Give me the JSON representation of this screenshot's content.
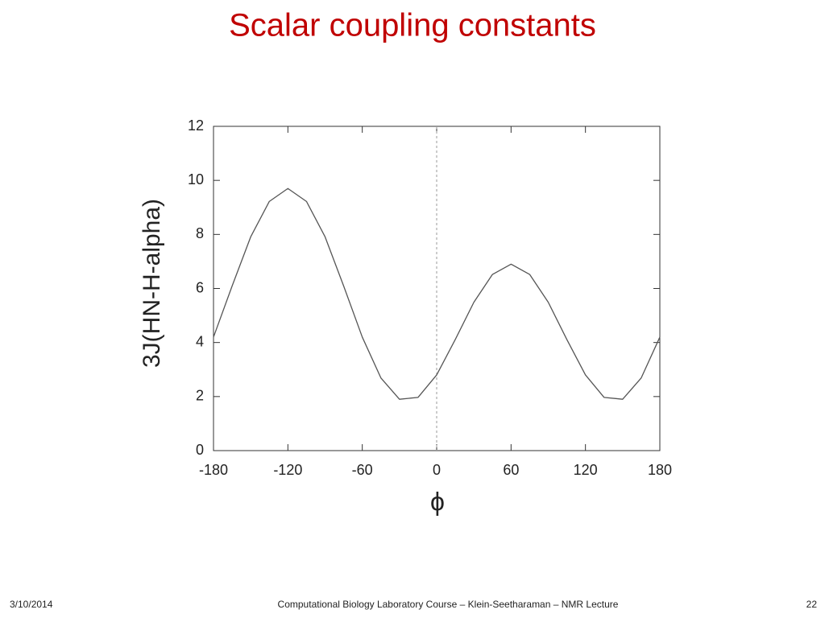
{
  "slide": {
    "title": "Scalar coupling constants"
  },
  "footer": {
    "date": "3/10/2014",
    "text": "Computational Biology Laboratory Course – Klein-Seetharaman – NMR Lecture",
    "page": "22"
  },
  "chart_data": {
    "type": "line",
    "x_label": "ϕ",
    "y_label": "3J(HN-H-alpha)",
    "x": [
      -180,
      -165,
      -150,
      -135,
      -120,
      -105,
      -90,
      -75,
      -60,
      -45,
      -30,
      -15,
      0,
      15,
      30,
      45,
      60,
      75,
      90,
      105,
      120,
      135,
      150,
      165,
      180
    ],
    "series": [
      {
        "name": "3J(HN-H-alpha)",
        "color": "#555555",
        "values": [
          4.2,
          6.09,
          7.91,
          9.22,
          9.7,
          9.22,
          7.91,
          6.09,
          4.2,
          2.69,
          1.9,
          1.97,
          2.8,
          4.11,
          5.49,
          6.52,
          6.9,
          6.52,
          5.49,
          4.11,
          2.8,
          1.97,
          1.9,
          2.69,
          4.2
        ]
      }
    ],
    "xlim": [
      -180,
      180
    ],
    "xticks": [
      -180,
      -120,
      -60,
      0,
      60,
      120,
      180
    ],
    "ylim": [
      0,
      12
    ],
    "yticks": [
      0,
      2,
      4,
      6,
      8,
      10,
      12
    ],
    "zero_line": true,
    "legend": false
  }
}
